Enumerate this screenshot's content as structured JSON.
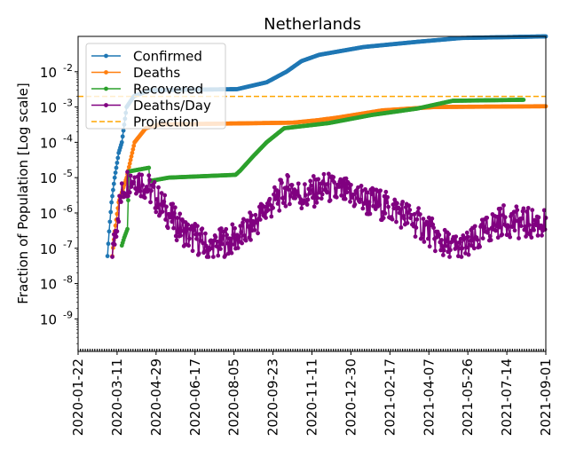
{
  "chart_data": {
    "type": "line",
    "title": "Netherlands",
    "xlabel": "",
    "ylabel": "Fraction of Population [Log scale]",
    "yscale": "log",
    "ylim": [
      1.2e-10,
      0.1
    ],
    "xlim": [
      "2020-01-22",
      "2021-09-01"
    ],
    "x_unit": "days since 2020-01-22",
    "x_ticks": [
      "2020-01-22",
      "2020-03-11",
      "2020-04-29",
      "2020-06-17",
      "2020-08-05",
      "2020-09-23",
      "2020-11-11",
      "2020-12-30",
      "2021-02-17",
      "2021-04-07",
      "2021-05-26",
      "2021-07-14",
      "2021-09-01"
    ],
    "y_ticks": [
      {
        "exp": "-2"
      },
      {
        "exp": "-3"
      },
      {
        "exp": "-4"
      },
      {
        "exp": "-5"
      },
      {
        "exp": "-6"
      },
      {
        "exp": "-7"
      },
      {
        "exp": "-8"
      },
      {
        "exp": "-9"
      }
    ],
    "y_tick_base": "10",
    "legend_position": "upper-left",
    "series": [
      {
        "name": "Confirmed",
        "color": "#1f77b4",
        "style": "line-marker",
        "points": [
          [
            37,
            6e-08
          ],
          [
            39,
            3e-07
          ],
          [
            42,
            2e-06
          ],
          [
            46,
            1e-05
          ],
          [
            51,
            5e-05
          ],
          [
            55,
            0.0001
          ],
          [
            61,
            0.001
          ],
          [
            70,
            0.002
          ],
          [
            90,
            0.003
          ],
          [
            200,
            0.0032
          ],
          [
            237,
            0.005
          ],
          [
            262,
            0.01
          ],
          [
            281,
            0.02
          ],
          [
            303,
            0.03
          ],
          [
            359,
            0.05
          ],
          [
            426,
            0.07
          ],
          [
            482,
            0.09
          ],
          [
            588,
            0.1
          ]
        ]
      },
      {
        "name": "Deaths",
        "color": "#ff7f0e",
        "style": "line-marker",
        "points": [
          [
            43,
            6e-08
          ],
          [
            46,
            3e-07
          ],
          [
            51,
            2e-06
          ],
          [
            61,
            1e-05
          ],
          [
            71,
            0.0001
          ],
          [
            85,
            0.00025
          ],
          [
            103,
            0.00032
          ],
          [
            270,
            0.00036
          ],
          [
            300,
            0.00042
          ],
          [
            326,
            0.0005
          ],
          [
            382,
            0.0008
          ],
          [
            448,
            0.001
          ],
          [
            588,
            0.00105
          ]
        ]
      },
      {
        "name": "Recovered",
        "color": "#2ca02c",
        "style": "line-marker",
        "points": [
          [
            55,
            1.2e-07
          ],
          [
            58,
            2e-07
          ],
          [
            62,
            3.5e-07
          ],
          [
            64,
            1.5e-05
          ],
          [
            89,
            1.9e-05
          ],
          [
            90,
            8e-06
          ],
          [
            114,
            1e-05
          ],
          [
            198,
            1.2e-05
          ],
          [
            204,
            1.6e-05
          ],
          [
            220,
            4e-05
          ],
          [
            237,
            0.0001
          ],
          [
            259,
            0.00025
          ],
          [
            315,
            0.00035
          ],
          [
            370,
            0.0006
          ],
          [
            426,
            0.0009
          ],
          [
            471,
            0.0015
          ],
          [
            560,
            0.0016
          ]
        ]
      },
      {
        "name": "Deaths/Day",
        "color": "#800080",
        "style": "line-marker",
        "points": [
          [
            43,
            6e-08
          ],
          [
            50,
            1e-06
          ],
          [
            57,
            5e-06
          ],
          [
            64,
            9e-06
          ],
          [
            71,
            1e-05
          ],
          [
            78,
            8e-06
          ],
          [
            85,
            6e-06
          ],
          [
            92,
            4e-06
          ],
          [
            99,
            2.5e-06
          ],
          [
            106,
            1.5e-06
          ],
          [
            113,
            1e-06
          ],
          [
            120,
            6e-07
          ],
          [
            127,
            4e-07
          ],
          [
            134,
            3e-07
          ],
          [
            141,
            2e-07
          ],
          [
            148,
            2e-07
          ],
          [
            155,
            1.5e-07
          ],
          [
            162,
            1e-07
          ],
          [
            169,
            1e-07
          ],
          [
            176,
            1.2e-07
          ],
          [
            183,
            1.5e-07
          ],
          [
            190,
            1.5e-07
          ],
          [
            197,
            2e-07
          ],
          [
            204,
            2e-07
          ],
          [
            211,
            3e-07
          ],
          [
            218,
            4e-07
          ],
          [
            225,
            6e-07
          ],
          [
            232,
            1e-06
          ],
          [
            239,
            1.5e-06
          ],
          [
            246,
            2e-06
          ],
          [
            253,
            3e-06
          ],
          [
            260,
            4e-06
          ],
          [
            267,
            5e-06
          ],
          [
            274,
            4e-06
          ],
          [
            281,
            3e-06
          ],
          [
            288,
            3e-06
          ],
          [
            295,
            4e-06
          ],
          [
            302,
            4e-06
          ],
          [
            309,
            5e-06
          ],
          [
            316,
            5e-06
          ],
          [
            323,
            4e-06
          ],
          [
            330,
            4e-06
          ],
          [
            337,
            3.5e-06
          ],
          [
            344,
            3e-06
          ],
          [
            351,
            3e-06
          ],
          [
            358,
            2.5e-06
          ],
          [
            365,
            2e-06
          ],
          [
            372,
            2e-06
          ],
          [
            379,
            1.8e-06
          ],
          [
            386,
            1.5e-06
          ],
          [
            393,
            1.3e-06
          ],
          [
            400,
            1.2e-06
          ],
          [
            407,
            1e-06
          ],
          [
            414,
            8e-07
          ],
          [
            421,
            6e-07
          ],
          [
            428,
            5e-07
          ],
          [
            435,
            4e-07
          ],
          [
            442,
            3e-07
          ],
          [
            449,
            2e-07
          ],
          [
            456,
            1.5e-07
          ],
          [
            463,
            1.2e-07
          ],
          [
            470,
            1e-07
          ],
          [
            477,
            1e-07
          ],
          [
            484,
            1e-07
          ],
          [
            491,
            1.2e-07
          ],
          [
            498,
            1.5e-07
          ],
          [
            505,
            2e-07
          ],
          [
            512,
            3e-07
          ],
          [
            519,
            4e-07
          ],
          [
            526,
            5e-07
          ],
          [
            533,
            6e-07
          ],
          [
            540,
            6e-07
          ],
          [
            560,
            5e-07
          ],
          [
            588,
            5e-07
          ]
        ]
      },
      {
        "name": "Projection",
        "color": "#ffa500",
        "style": "dashed",
        "value": 0.002
      }
    ]
  }
}
